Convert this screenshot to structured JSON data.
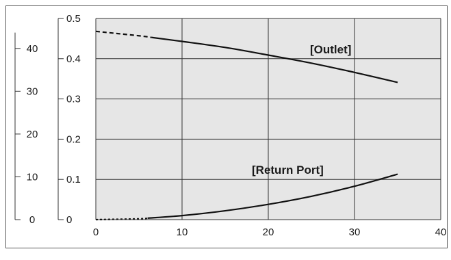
{
  "chart_data": {
    "type": "line",
    "title": "",
    "xlabel": "",
    "ylabel": "",
    "xlim": [
      0,
      40
    ],
    "ylim": [
      0,
      0.5
    ],
    "xticks": [
      "0",
      "10",
      "20",
      "30",
      "40"
    ],
    "yticks": [
      "0",
      "0.1",
      "0.2",
      "0.3",
      "0.4",
      "0.5"
    ],
    "secondary_axis": {
      "ylim": [
        0,
        47
      ],
      "ticks": [
        "0",
        "10",
        "20",
        "30",
        "40"
      ]
    },
    "grid": true,
    "series": [
      {
        "name": "[Outlet]",
        "dashed_until_x": 6.5,
        "x": [
          0,
          5,
          10,
          15,
          20,
          25,
          30,
          35
        ],
        "y": [
          0.468,
          0.457,
          0.443,
          0.428,
          0.409,
          0.389,
          0.366,
          0.341
        ]
      },
      {
        "name": "[Return Port]",
        "dashed_until_x": 6,
        "x": [
          0,
          5,
          10,
          15,
          20,
          25,
          30,
          35
        ],
        "y": [
          0.0,
          0.002,
          0.01,
          0.022,
          0.038,
          0.058,
          0.083,
          0.113
        ]
      }
    ]
  }
}
